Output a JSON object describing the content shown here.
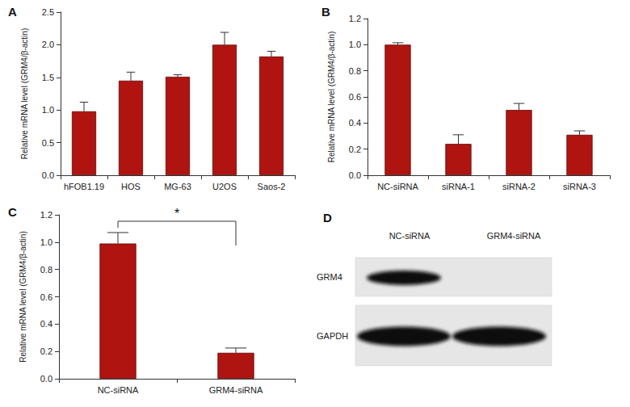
{
  "chart_data": [
    {
      "type": "bar",
      "title": "A",
      "y_label": "Relative mRNA level (GRM4/β-actin)",
      "categories": [
        "hFOB1.19",
        "HOS",
        "MG-63",
        "U2OS",
        "Saos-2"
      ],
      "values": [
        0.98,
        1.45,
        1.51,
        2.0,
        1.82
      ],
      "errors": [
        0.14,
        0.13,
        0.03,
        0.19,
        0.08
      ],
      "color": "#b01410",
      "ylim": [
        0,
        2.5
      ],
      "yticks": [
        {
          "value": 0,
          "label": "0.0"
        },
        0.5,
        {
          "value": 1,
          "label": "1.0"
        },
        1.5,
        {
          "value": 2,
          "label": "2.0"
        },
        2.5
      ],
      "grid": false
    },
    {
      "type": "bar",
      "title": "B",
      "y_label": "Relative mRNA level (GRM4/β-actin)",
      "categories": [
        "NC-siRNA",
        "siRNA-1",
        "siRNA-2",
        "siRNA-3"
      ],
      "values": [
        1.0,
        0.24,
        0.5,
        0.31
      ],
      "errors": [
        0.015,
        0.07,
        0.05,
        0.03
      ],
      "color": "#b01410",
      "ylim": [
        0,
        1.2
      ],
      "yticks": [
        {
          "value": 0,
          "label": "0.0"
        },
        0.2,
        0.4,
        0.6,
        0.8,
        {
          "value": 1,
          "label": "1.0"
        },
        1.2
      ],
      "grid": false
    },
    {
      "type": "bar",
      "title": "C",
      "y_label": "Relative mRNA level (GRM4/β-actin)",
      "categories": [
        "NC-siRNA",
        "GRM4-siRNA"
      ],
      "values": [
        0.99,
        0.19
      ],
      "errors": [
        0.08,
        0.035
      ],
      "color": "#b01410",
      "ylim": [
        0,
        1.2
      ],
      "yticks": [
        {
          "value": 0,
          "label": "0.0"
        },
        0.2,
        0.4,
        0.6,
        0.8,
        {
          "value": 1,
          "label": "1.0"
        },
        1.2
      ],
      "grid": false,
      "annotations": [
        {
          "text": "*",
          "between": [
            "NC-siRNA",
            "GRM4-siRNA"
          ]
        }
      ]
    }
  ],
  "blot": {
    "title": "D",
    "lanes": [
      "NC-siRNA",
      "GRM4-siRNA"
    ],
    "rows": [
      {
        "label": "GRM4",
        "bands": [
          true,
          false
        ]
      },
      {
        "label": "GAPDH",
        "bands": [
          true,
          true
        ]
      }
    ]
  }
}
